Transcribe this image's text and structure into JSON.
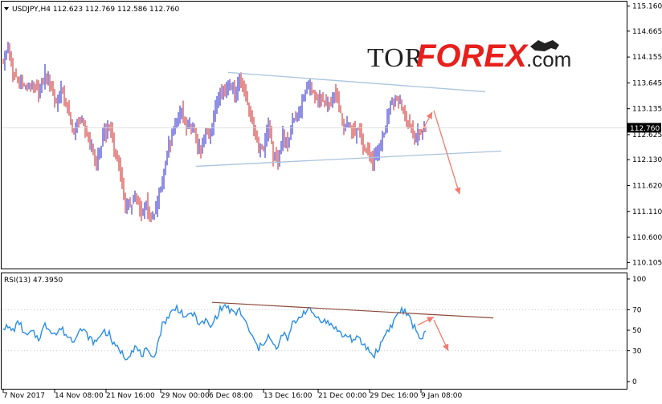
{
  "chart_data": [
    {
      "type": "candlestick",
      "symbol_info": "USDJPY,H4  112.623 112.769 112.586 112.760",
      "current_price_label": "112.760",
      "current_price": 112.76,
      "ylim": [
        110.0,
        115.2
      ],
      "y_ticks": [
        {
          "value": 115.16,
          "label": "115.160"
        },
        {
          "value": 114.665,
          "label": "114.665"
        },
        {
          "value": 114.155,
          "label": "114.155"
        },
        {
          "value": 113.645,
          "label": "113.645"
        },
        {
          "value": 113.135,
          "label": "113.135"
        },
        {
          "value": 112.625,
          "label": "112.625"
        },
        {
          "value": 112.13,
          "label": "112.130"
        },
        {
          "value": 111.62,
          "label": "111.620"
        },
        {
          "value": 111.11,
          "label": "111.110"
        },
        {
          "value": 110.6,
          "label": "110.600"
        },
        {
          "value": 110.105,
          "label": "110.105"
        }
      ],
      "bar_count": 264,
      "close_anchors": [
        [
          0,
          114.1
        ],
        [
          3,
          114.3
        ],
        [
          6,
          113.8
        ],
        [
          10,
          113.7
        ],
        [
          14,
          113.55
        ],
        [
          18,
          113.6
        ],
        [
          22,
          113.5
        ],
        [
          26,
          113.8
        ],
        [
          30,
          113.55
        ],
        [
          33,
          113.25
        ],
        [
          36,
          113.5
        ],
        [
          40,
          113.15
        ],
        [
          44,
          112.65
        ],
        [
          47,
          112.95
        ],
        [
          51,
          112.7
        ],
        [
          55,
          112.35
        ],
        [
          58,
          112.05
        ],
        [
          62,
          112.55
        ],
        [
          66,
          112.8
        ],
        [
          69,
          112.35
        ],
        [
          73,
          111.9
        ],
        [
          76,
          111.15
        ],
        [
          79,
          111.25
        ],
        [
          82,
          111.4
        ],
        [
          86,
          111.05
        ],
        [
          89,
          111.3
        ],
        [
          92,
          110.9
        ],
        [
          95,
          111.1
        ],
        [
          99,
          111.75
        ],
        [
          102,
          112.3
        ],
        [
          105,
          112.55
        ],
        [
          108,
          112.95
        ],
        [
          111,
          113.1
        ],
        [
          114,
          112.75
        ],
        [
          117,
          112.8
        ],
        [
          120,
          112.55
        ],
        [
          123,
          112.25
        ],
        [
          126,
          112.6
        ],
        [
          129,
          112.65
        ],
        [
          132,
          113.1
        ],
        [
          135,
          113.55
        ],
        [
          138,
          113.45
        ],
        [
          141,
          113.65
        ],
        [
          144,
          113.4
        ],
        [
          147,
          113.7
        ],
        [
          150,
          113.5
        ],
        [
          153,
          113.15
        ],
        [
          156,
          112.7
        ],
        [
          159,
          112.4
        ],
        [
          162,
          112.35
        ],
        [
          165,
          112.85
        ],
        [
          168,
          112.2
        ],
        [
          171,
          112.15
        ],
        [
          174,
          112.6
        ],
        [
          177,
          112.4
        ],
        [
          180,
          112.95
        ],
        [
          184,
          113.05
        ],
        [
          187,
          113.35
        ],
        [
          190,
          113.6
        ],
        [
          193,
          113.4
        ],
        [
          196,
          113.3
        ],
        [
          199,
          113.3
        ],
        [
          203,
          113.2
        ],
        [
          206,
          113.4
        ],
        [
          209,
          113.25
        ],
        [
          212,
          112.8
        ],
        [
          215,
          112.85
        ],
        [
          218,
          112.65
        ],
        [
          221,
          112.7
        ],
        [
          224,
          112.35
        ],
        [
          227,
          112.3
        ],
        [
          230,
          112.1
        ],
        [
          233,
          112.3
        ],
        [
          236,
          112.55
        ],
        [
          239,
          112.95
        ],
        [
          242,
          113.25
        ],
        [
          245,
          113.35
        ],
        [
          248,
          113.2
        ],
        [
          251,
          112.95
        ],
        [
          254,
          112.75
        ],
        [
          257,
          112.6
        ],
        [
          260,
          112.7
        ],
        [
          263,
          112.76
        ]
      ],
      "lines": [
        {
          "type": "trendline",
          "name": "upper",
          "from": {
            "bar": 140,
            "price": 113.85
          },
          "to": {
            "bar": 300,
            "price": 113.47
          }
        },
        {
          "type": "trendline",
          "name": "lower",
          "from": {
            "bar": 120,
            "price": 112.0
          },
          "to": {
            "bar": 310,
            "price": 112.3
          }
        },
        {
          "type": "forecast",
          "from": {
            "bar": 259,
            "price": 112.6
          },
          "to": {
            "bar": 267,
            "price": 113.07
          }
        },
        {
          "type": "forecast",
          "from": {
            "bar": 268,
            "price": 113.1
          },
          "to": {
            "bar": 284,
            "price": 111.45
          }
        }
      ]
    },
    {
      "type": "line",
      "title": "RSI(13) 47.3950",
      "ylim": [
        0,
        100
      ],
      "y_ticks": [
        {
          "value": 100,
          "label": "100"
        },
        {
          "value": 70,
          "label": "70"
        },
        {
          "value": 50,
          "label": "50"
        },
        {
          "value": 30,
          "label": "30"
        },
        {
          "value": 0,
          "label": "0"
        }
      ],
      "anchors": [
        [
          0,
          54
        ],
        [
          6,
          50
        ],
        [
          10,
          58
        ],
        [
          14,
          44
        ],
        [
          18,
          48
        ],
        [
          22,
          42
        ],
        [
          26,
          55
        ],
        [
          30,
          50
        ],
        [
          33,
          46
        ],
        [
          36,
          52
        ],
        [
          40,
          44
        ],
        [
          44,
          40
        ],
        [
          47,
          52
        ],
        [
          51,
          48
        ],
        [
          55,
          40
        ],
        [
          58,
          38
        ],
        [
          62,
          50
        ],
        [
          66,
          46
        ],
        [
          69,
          35
        ],
        [
          73,
          30
        ],
        [
          76,
          23
        ],
        [
          79,
          28
        ],
        [
          82,
          34
        ],
        [
          86,
          26
        ],
        [
          89,
          30
        ],
        [
          92,
          22
        ],
        [
          95,
          30
        ],
        [
          99,
          55
        ],
        [
          102,
          62
        ],
        [
          105,
          68
        ],
        [
          108,
          72
        ],
        [
          111,
          68
        ],
        [
          114,
          60
        ],
        [
          117,
          68
        ],
        [
          120,
          62
        ],
        [
          123,
          55
        ],
        [
          126,
          60
        ],
        [
          129,
          52
        ],
        [
          132,
          62
        ],
        [
          135,
          70
        ],
        [
          138,
          74
        ],
        [
          141,
          70
        ],
        [
          144,
          65
        ],
        [
          147,
          70
        ],
        [
          150,
          60
        ],
        [
          153,
          50
        ],
        [
          156,
          40
        ],
        [
          159,
          32
        ],
        [
          162,
          38
        ],
        [
          165,
          45
        ],
        [
          168,
          35
        ],
        [
          171,
          32
        ],
        [
          174,
          48
        ],
        [
          177,
          40
        ],
        [
          180,
          56
        ],
        [
          184,
          62
        ],
        [
          187,
          68
        ],
        [
          190,
          70
        ],
        [
          193,
          66
        ],
        [
          196,
          62
        ],
        [
          199,
          60
        ],
        [
          203,
          56
        ],
        [
          206,
          54
        ],
        [
          209,
          48
        ],
        [
          212,
          44
        ],
        [
          215,
          45
        ],
        [
          218,
          40
        ],
        [
          221,
          42
        ],
        [
          224,
          36
        ],
        [
          227,
          32
        ],
        [
          230,
          25
        ],
        [
          233,
          30
        ],
        [
          236,
          40
        ],
        [
          239,
          50
        ],
        [
          242,
          55
        ],
        [
          245,
          65
        ],
        [
          248,
          70
        ],
        [
          251,
          66
        ],
        [
          254,
          58
        ],
        [
          257,
          50
        ],
        [
          260,
          42
        ],
        [
          263,
          47.4
        ]
      ],
      "lines": [
        {
          "type": "trendline",
          "from": {
            "bar": 130,
            "value": 77.2
          },
          "to": {
            "bar": 305,
            "value": 62.0
          }
        },
        {
          "type": "forecast",
          "from": {
            "bar": 258,
            "value": 55
          },
          "to": {
            "bar": 268,
            "value": 63
          }
        },
        {
          "type": "forecast",
          "from": {
            "bar": 268,
            "value": 60
          },
          "to": {
            "bar": 277,
            "value": 30
          }
        }
      ]
    }
  ],
  "x_axis": {
    "labels": [
      {
        "bar": 0,
        "text": "7 Nov 2017"
      },
      {
        "bar": 32,
        "text": "14 Nov 08:00"
      },
      {
        "bar": 64,
        "text": "21 Nov 16:00"
      },
      {
        "bar": 98,
        "text": "29 Nov 00:00"
      },
      {
        "bar": 128,
        "text": "6 Dec 08:00"
      },
      {
        "bar": 162,
        "text": "13 Dec 16:00"
      },
      {
        "bar": 196,
        "text": "21 Dec 00:00"
      },
      {
        "bar": 228,
        "text": "29 Dec 16:00"
      },
      {
        "bar": 260,
        "text": "9 Jan 08:00"
      }
    ]
  },
  "watermark": {
    "part1": "TOR",
    "part2": "FOREX",
    "part3": ".com"
  },
  "colors": {
    "bull": "#1f1fcc",
    "bear": "#cc1f1f",
    "trend": "#a9c4dc",
    "forecast": "#f27a6e",
    "rsi": "#2a8ee8",
    "rsi_trend": "#8b4a3a",
    "axis": "#000000",
    "current_label_bg": "#000000"
  }
}
